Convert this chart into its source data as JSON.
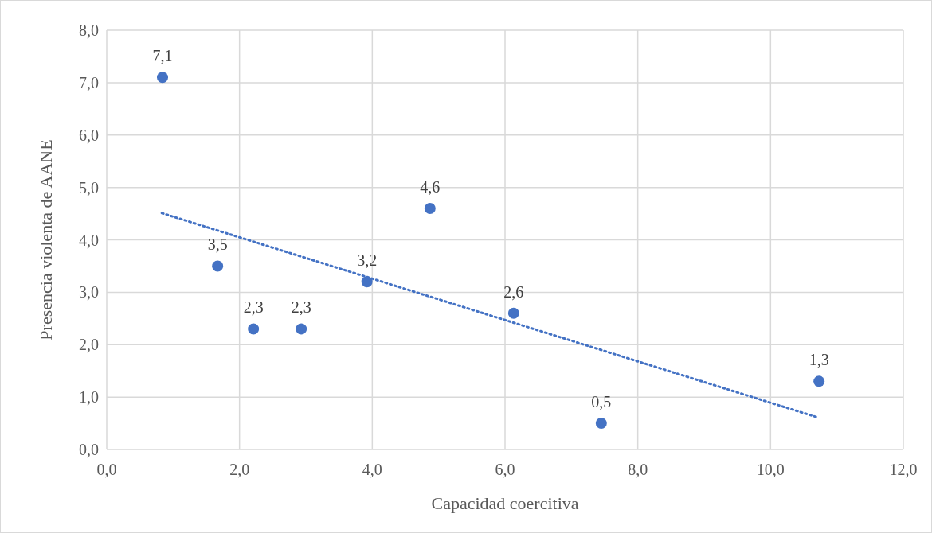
{
  "chart_data": {
    "type": "scatter",
    "xlabel": "Capacidad coercitiva",
    "ylabel": "Presencia violenta de AANE",
    "grid": true,
    "xlim": [
      0,
      12
    ],
    "ylim": [
      0,
      8
    ],
    "xticks": [
      {
        "value": 0,
        "label": "0,0"
      },
      {
        "value": 2,
        "label": "2,0"
      },
      {
        "value": 4,
        "label": "4,0"
      },
      {
        "value": 6,
        "label": "6,0"
      },
      {
        "value": 8,
        "label": "8,0"
      },
      {
        "value": 10,
        "label": "10,0"
      },
      {
        "value": 12,
        "label": "12,0"
      }
    ],
    "yticks": [
      {
        "value": 0,
        "label": "0,0"
      },
      {
        "value": 1,
        "label": "1,0"
      },
      {
        "value": 2,
        "label": "2,0"
      },
      {
        "value": 3,
        "label": "3,0"
      },
      {
        "value": 4,
        "label": "4,0"
      },
      {
        "value": 5,
        "label": "5,0"
      },
      {
        "value": 6,
        "label": "6,0"
      },
      {
        "value": 7,
        "label": "7,0"
      },
      {
        "value": 8,
        "label": "8,0"
      }
    ],
    "series": [
      {
        "type": "scatter",
        "color": "#4472c4",
        "marker": "circle",
        "x": [
          0.84,
          1.67,
          2.21,
          2.93,
          3.92,
          4.87,
          6.13,
          7.45,
          10.73
        ],
        "values": [
          7.1,
          3.5,
          2.3,
          2.3,
          3.2,
          4.6,
          2.6,
          0.5,
          1.3
        ],
        "value_labels": [
          "7,1",
          "3,5",
          "2,3",
          "2,3",
          "3,2",
          "4,6",
          "2,6",
          "0,5",
          "1,3"
        ]
      },
      {
        "type": "line",
        "color": "#4472c4",
        "line_style": "dotted",
        "marker": "none",
        "x": [
          0.83,
          10.69
        ],
        "values": [
          4.51,
          0.62
        ]
      }
    ]
  }
}
